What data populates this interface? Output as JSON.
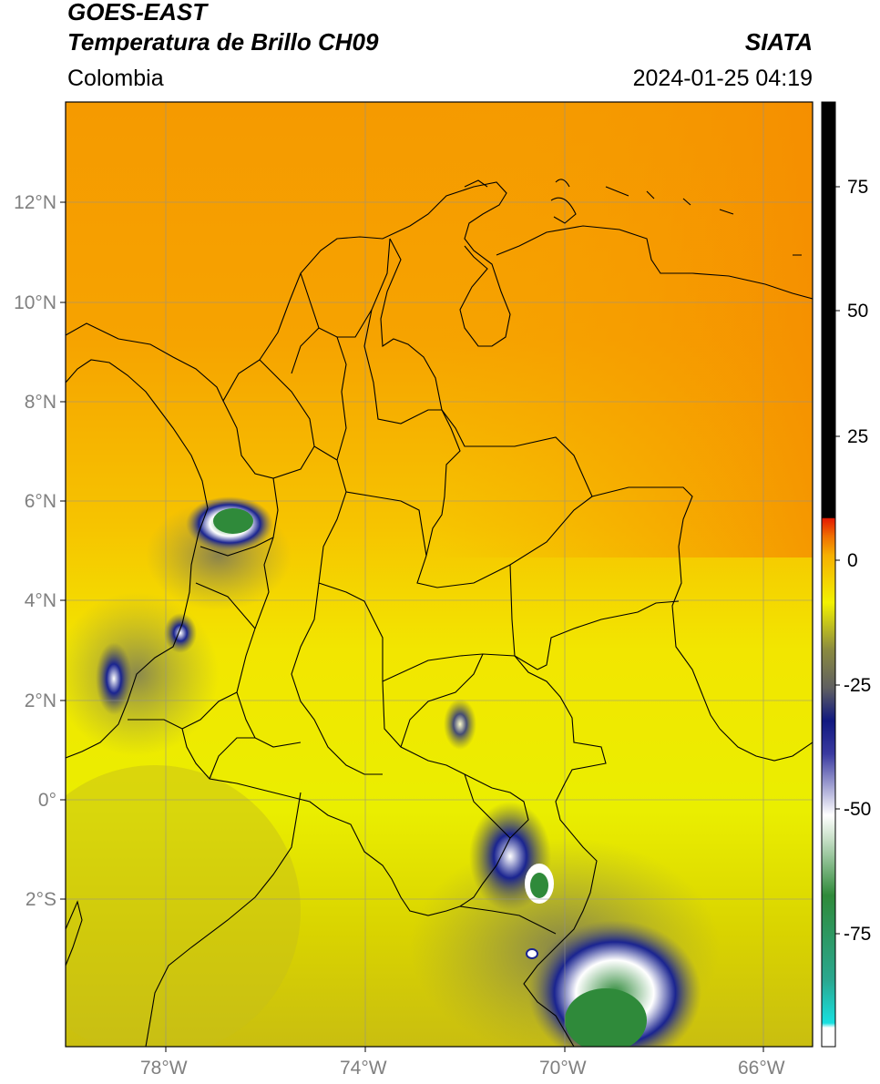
{
  "header": {
    "satellite": "GOES-EAST",
    "product": "Temperatura de Brillo CH09",
    "agency": "SIATA",
    "region": "Colombia",
    "datetime": "2024-01-25 04:19"
  },
  "axes": {
    "lat_labels": [
      "12°N",
      "10°N",
      "8°N",
      "6°N",
      "4°N",
      "2°N",
      "0°",
      "2°S"
    ],
    "lon_labels": [
      "78°W",
      "74°W",
      "70°W",
      "66°W"
    ]
  },
  "colorbar": {
    "ticks": [
      "75",
      "50",
      "25",
      "0",
      "-25",
      "-50",
      "-75"
    ],
    "colors": {
      "white": "#ffffff",
      "cyan": "#18d6d0",
      "green": "#2f8a3a",
      "navy": "#141a7a",
      "grey": "#7a7a7a",
      "yellow": "#f2f200",
      "orange": "#f59a00",
      "red": "#e31a00",
      "black": "#000000"
    }
  }
}
